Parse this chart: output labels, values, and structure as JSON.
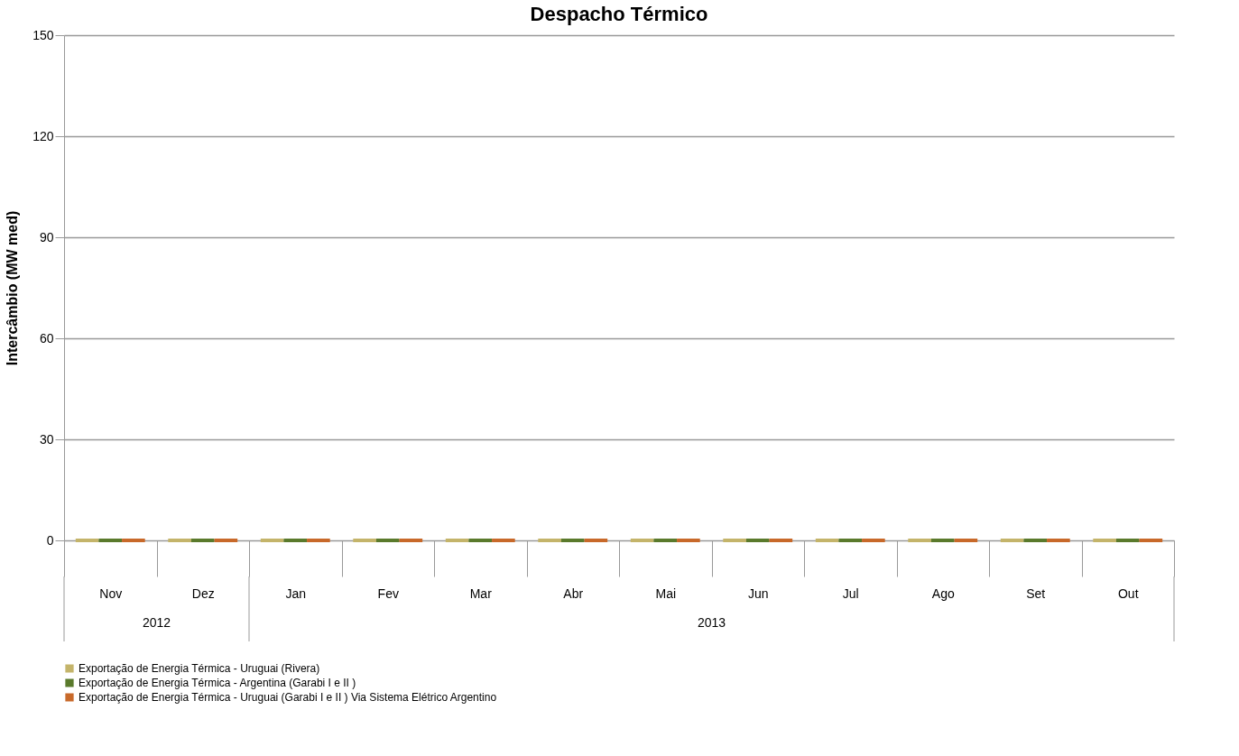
{
  "chart_data": {
    "type": "bar",
    "title": "Despacho Térmico",
    "ylabel": "Intercâmbio (MW med)",
    "categories": [
      "Nov",
      "Dez",
      "Jan",
      "Fev",
      "Mar",
      "Abr",
      "Mai",
      "Jun",
      "Jul",
      "Ago",
      "Set",
      "Out"
    ],
    "series": [
      {
        "name": "Exportação de Energia Térmica - Uruguai (Rivera)",
        "color": "#c4b46a",
        "values": [
          0,
          0,
          0,
          0,
          0,
          0,
          0,
          0,
          0,
          0,
          0,
          0
        ]
      },
      {
        "name": "Exportação de Energia Térmica - Argentina (Garabi I e II )",
        "color": "#5a7a2c",
        "values": [
          0,
          0,
          0,
          0,
          0,
          0,
          0,
          0,
          0,
          0,
          0,
          0
        ]
      },
      {
        "name": "Exportação de Energia Térmica - Uruguai (Garabi I e II ) Via Sistema Elétrico Argentino",
        "color": "#c8692a",
        "values": [
          0,
          0,
          0,
          0,
          0,
          0,
          0,
          0,
          0,
          0,
          0,
          0
        ]
      }
    ],
    "annotations": [
      "2012",
      "2013"
    ],
    "ylim": [
      0,
      150
    ],
    "yticks": [
      0,
      30,
      60,
      90,
      120,
      150
    ],
    "grid": "y",
    "legend": "bottom"
  }
}
